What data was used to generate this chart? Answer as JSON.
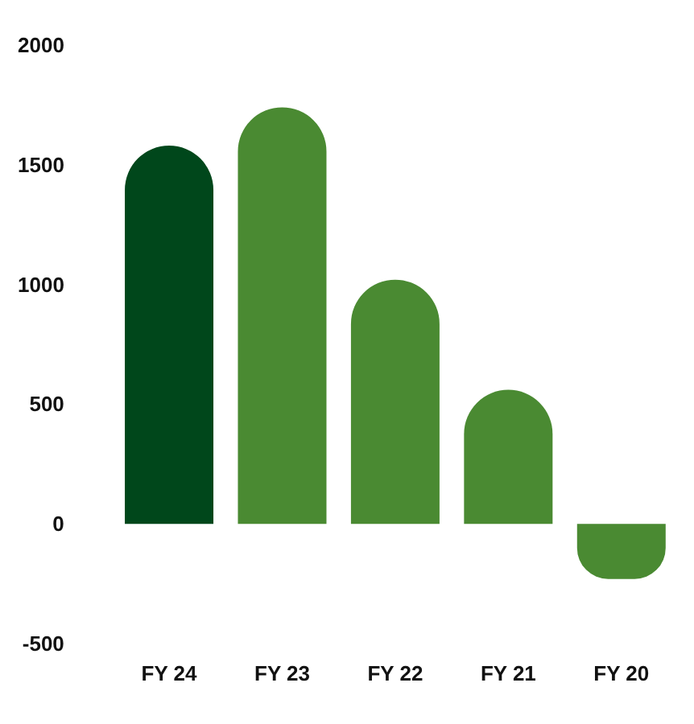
{
  "chart_data": {
    "type": "bar",
    "categories": [
      "FY 24",
      "FY 23",
      "FY 22",
      "FY 21",
      "FY 20"
    ],
    "values": [
      1580,
      1740,
      1020,
      560,
      -230
    ],
    "colors": [
      "#00471b",
      "#4a8a32",
      "#4a8a32",
      "#4a8a32",
      "#4a8a32"
    ],
    "ylim": [
      -500,
      2000
    ],
    "yticks": [
      -500,
      0,
      500,
      1000,
      1500,
      2000
    ],
    "grid": false
  }
}
